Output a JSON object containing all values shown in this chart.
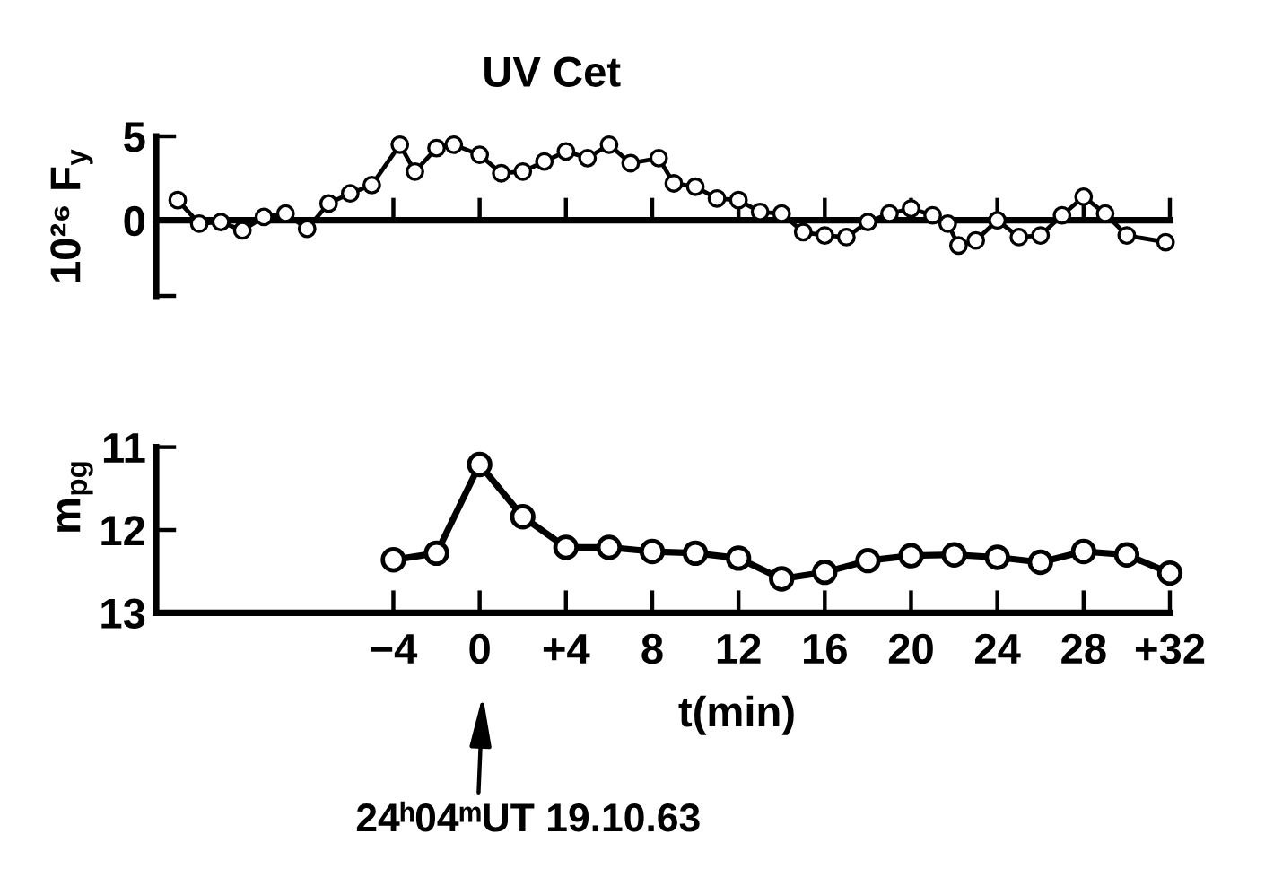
{
  "chart_data": [
    {
      "type": "line",
      "title": "UV Cet",
      "ylabel": "10²⁶ F$_{y}$",
      "marker": "circle",
      "tick_labels": "y",
      "x": [
        -14,
        -13,
        -12,
        -11,
        -10,
        -9,
        -8,
        -7,
        -6,
        -5,
        -3.7,
        -3,
        -2,
        -1.2,
        0,
        1,
        2,
        3,
        4,
        5,
        6,
        7,
        8.3,
        9,
        10,
        11,
        12,
        13,
        14,
        15,
        16,
        17,
        18,
        19,
        20,
        21,
        21.7,
        22.2,
        23,
        24,
        25,
        26,
        27,
        28,
        29,
        30,
        31.8
      ],
      "series": [
        {
          "color": "#000000",
          "values": [
            1.2,
            -0.2,
            -0.1,
            -0.6,
            0.2,
            0.4,
            -0.5,
            1.0,
            1.6,
            2.1,
            4.5,
            2.9,
            4.3,
            4.5,
            3.9,
            2.8,
            2.9,
            3.5,
            4.1,
            3.7,
            4.5,
            3.4,
            3.7,
            2.2,
            2.0,
            1.3,
            1.2,
            0.5,
            0.4,
            -0.7,
            -0.9,
            -1.0,
            -0.1,
            0.4,
            0.7,
            0.3,
            -0.2,
            -1.5,
            -1.2,
            0.0,
            -1.0,
            -0.9,
            0.3,
            1.4,
            0.4,
            -0.9,
            -1.3
          ]
        }
      ],
      "xlim": [
        -15,
        32
      ],
      "xticks": [
        -4,
        0,
        4,
        8,
        12,
        16,
        20,
        24,
        28,
        32
      ],
      "ylim": [
        -4.5,
        5
      ],
      "yticks": [
        {
          "value": -4.5,
          "label": null
        },
        0,
        5
      ]
    },
    {
      "type": "line",
      "ylabel": "m$_{pg}$",
      "xlabel": "t(min)",
      "marker": "circle",
      "x": [
        -4,
        -2,
        0,
        2,
        4,
        6,
        8,
        10,
        12,
        14,
        16,
        18,
        20,
        22,
        24,
        26,
        28,
        30,
        32
      ],
      "series": [
        {
          "color": "#000000",
          "values": [
            12.36,
            12.28,
            11.21,
            11.84,
            12.21,
            12.21,
            12.26,
            12.28,
            12.34,
            12.59,
            12.51,
            12.37,
            12.31,
            12.3,
            12.33,
            12.39,
            12.26,
            12.3,
            12.52
          ]
        }
      ],
      "xlim": [
        -15,
        32
      ],
      "xticks": [
        {
          "value": -4,
          "label": "−4"
        },
        0,
        {
          "value": 4,
          "label": "+4"
        },
        8,
        12,
        16,
        20,
        24,
        28,
        {
          "value": 32,
          "label": "+32"
        }
      ],
      "ylim": [
        13,
        11
      ],
      "yticks": [
        11,
        12,
        13
      ],
      "annotations": [
        "24ʰ04ᵐUT 19.10.63"
      ]
    }
  ]
}
